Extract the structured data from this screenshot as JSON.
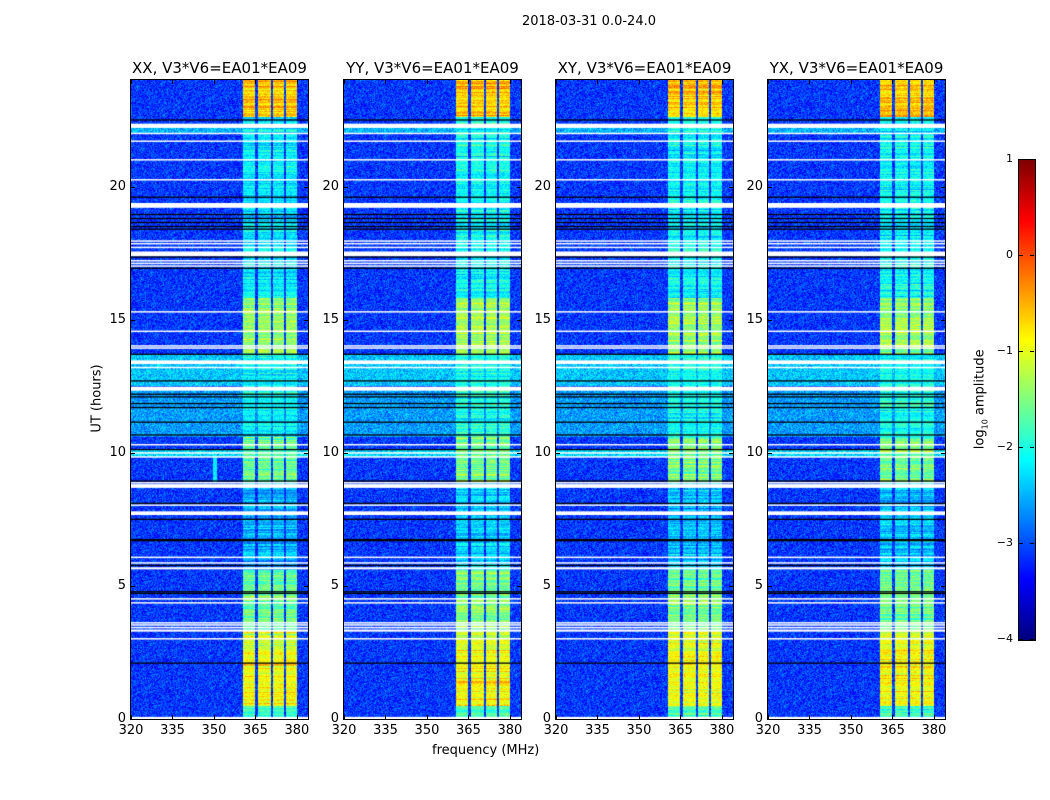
{
  "chart_data": {
    "type": "heatmap",
    "suptitle": "2018-03-31 0.0-24.0",
    "xlabel": "frequency (MHz)",
    "ylabel": "UT (hours)",
    "xlim": [
      320,
      384
    ],
    "ylim": [
      0,
      24
    ],
    "xticks": [
      "320",
      "335",
      "350",
      "365",
      "380"
    ],
    "xtick_values": [
      320,
      335,
      350,
      365,
      380
    ],
    "yticks": [
      "0",
      "5",
      "10",
      "15",
      "20"
    ],
    "ytick_values": [
      0,
      5,
      10,
      15,
      20
    ],
    "colorbar": {
      "label": "log10 amplitude",
      "label_main": "log",
      "label_sub": "10",
      "label_rest": " amplitude",
      "range": [
        -4,
        1
      ],
      "colormap": "jet",
      "ticks": [
        "1",
        "0",
        "−1",
        "−2",
        "−3",
        "−4"
      ],
      "tick_values": [
        1,
        0,
        -1,
        -2,
        -3,
        -4
      ]
    },
    "background_level": -3.1,
    "bands_mhz": [
      [
        360.5,
        365.0
      ],
      [
        365.8,
        370.5
      ],
      [
        371.3,
        375.3
      ],
      [
        376.0,
        380.0
      ]
    ],
    "band_levels": [
      {
        "from": 0.0,
        "to": 0.5,
        "level": -1.8
      },
      {
        "from": 0.5,
        "to": 2.6,
        "level": -0.9
      },
      {
        "from": 2.6,
        "to": 3.3,
        "level": -1.1
      },
      {
        "from": 3.3,
        "to": 5.6,
        "level": -1.6
      },
      {
        "from": 5.6,
        "to": 8.9,
        "level": -2.5
      },
      {
        "from": 8.9,
        "to": 10.6,
        "level": -1.6
      },
      {
        "from": 10.6,
        "to": 13.7,
        "level": -2.1
      },
      {
        "from": 13.7,
        "to": 15.8,
        "level": -1.4
      },
      {
        "from": 15.8,
        "to": 22.6,
        "level": -2.2
      },
      {
        "from": 22.6,
        "to": 24.0,
        "level": -0.6
      }
    ],
    "elevated_background": [
      {
        "from": 12.5,
        "to": 13.7,
        "level": -2.4
      },
      {
        "from": 10.6,
        "to": 12.4,
        "level": -2.6
      },
      {
        "from": 9.85,
        "to": 10.1,
        "level": -2.3
      },
      {
        "from": 22.0,
        "to": 22.35,
        "level": -2.5
      }
    ],
    "flagged_white_hours": [
      [
        0.0,
        0.08
      ],
      [
        3.0,
        3.04
      ],
      [
        3.28,
        3.36
      ],
      [
        3.42,
        3.46
      ],
      [
        3.53,
        3.56
      ],
      [
        3.6,
        3.64
      ],
      [
        4.35,
        4.39
      ],
      [
        4.5,
        4.54
      ],
      [
        5.62,
        5.7
      ],
      [
        5.85,
        5.89
      ],
      [
        6.06,
        6.1
      ],
      [
        7.66,
        7.8
      ],
      [
        8.02,
        8.06
      ],
      [
        8.68,
        8.82
      ],
      [
        8.86,
        8.9
      ],
      [
        9.83,
        9.87
      ],
      [
        9.98,
        10.02
      ],
      [
        10.28,
        10.33
      ],
      [
        12.33,
        12.48
      ],
      [
        13.18,
        13.23
      ],
      [
        13.33,
        13.47
      ],
      [
        13.92,
        13.96
      ],
      [
        14.0,
        14.04
      ],
      [
        14.55,
        14.59
      ],
      [
        15.28,
        15.32
      ],
      [
        17.0,
        17.04
      ],
      [
        17.1,
        17.14
      ],
      [
        17.2,
        17.24
      ],
      [
        17.38,
        17.56
      ],
      [
        17.7,
        17.74
      ],
      [
        17.84,
        17.88
      ],
      [
        17.94,
        17.98
      ],
      [
        19.2,
        19.38
      ],
      [
        20.23,
        20.28
      ],
      [
        20.98,
        21.03
      ],
      [
        21.68,
        21.73
      ],
      [
        21.98,
        22.02
      ],
      [
        22.2,
        22.36
      ]
    ],
    "flagged_black_hours": [
      2.1,
      4.72,
      4.78,
      5.77,
      6.7,
      6.74,
      7.5,
      8.1,
      8.94,
      10.12,
      10.67,
      11.15,
      11.7,
      11.85,
      12.1,
      12.2,
      12.7,
      13.7,
      16.93,
      17.35,
      18.4,
      18.5,
      18.65,
      18.8,
      18.95,
      19.6,
      22.5
    ],
    "panels": [
      {
        "title": "XX, V3*V6=EA01*EA09",
        "scale": 1.0,
        "ghost": true
      },
      {
        "title": "YY, V3*V6=EA01*EA09",
        "scale": 0.92,
        "ghost": false
      },
      {
        "title": "XY, V3*V6=EA01*EA09",
        "scale": 0.95,
        "ghost": false
      },
      {
        "title": "YX, V3*V6=EA01*EA09",
        "scale": 0.95,
        "ghost": false
      }
    ]
  }
}
